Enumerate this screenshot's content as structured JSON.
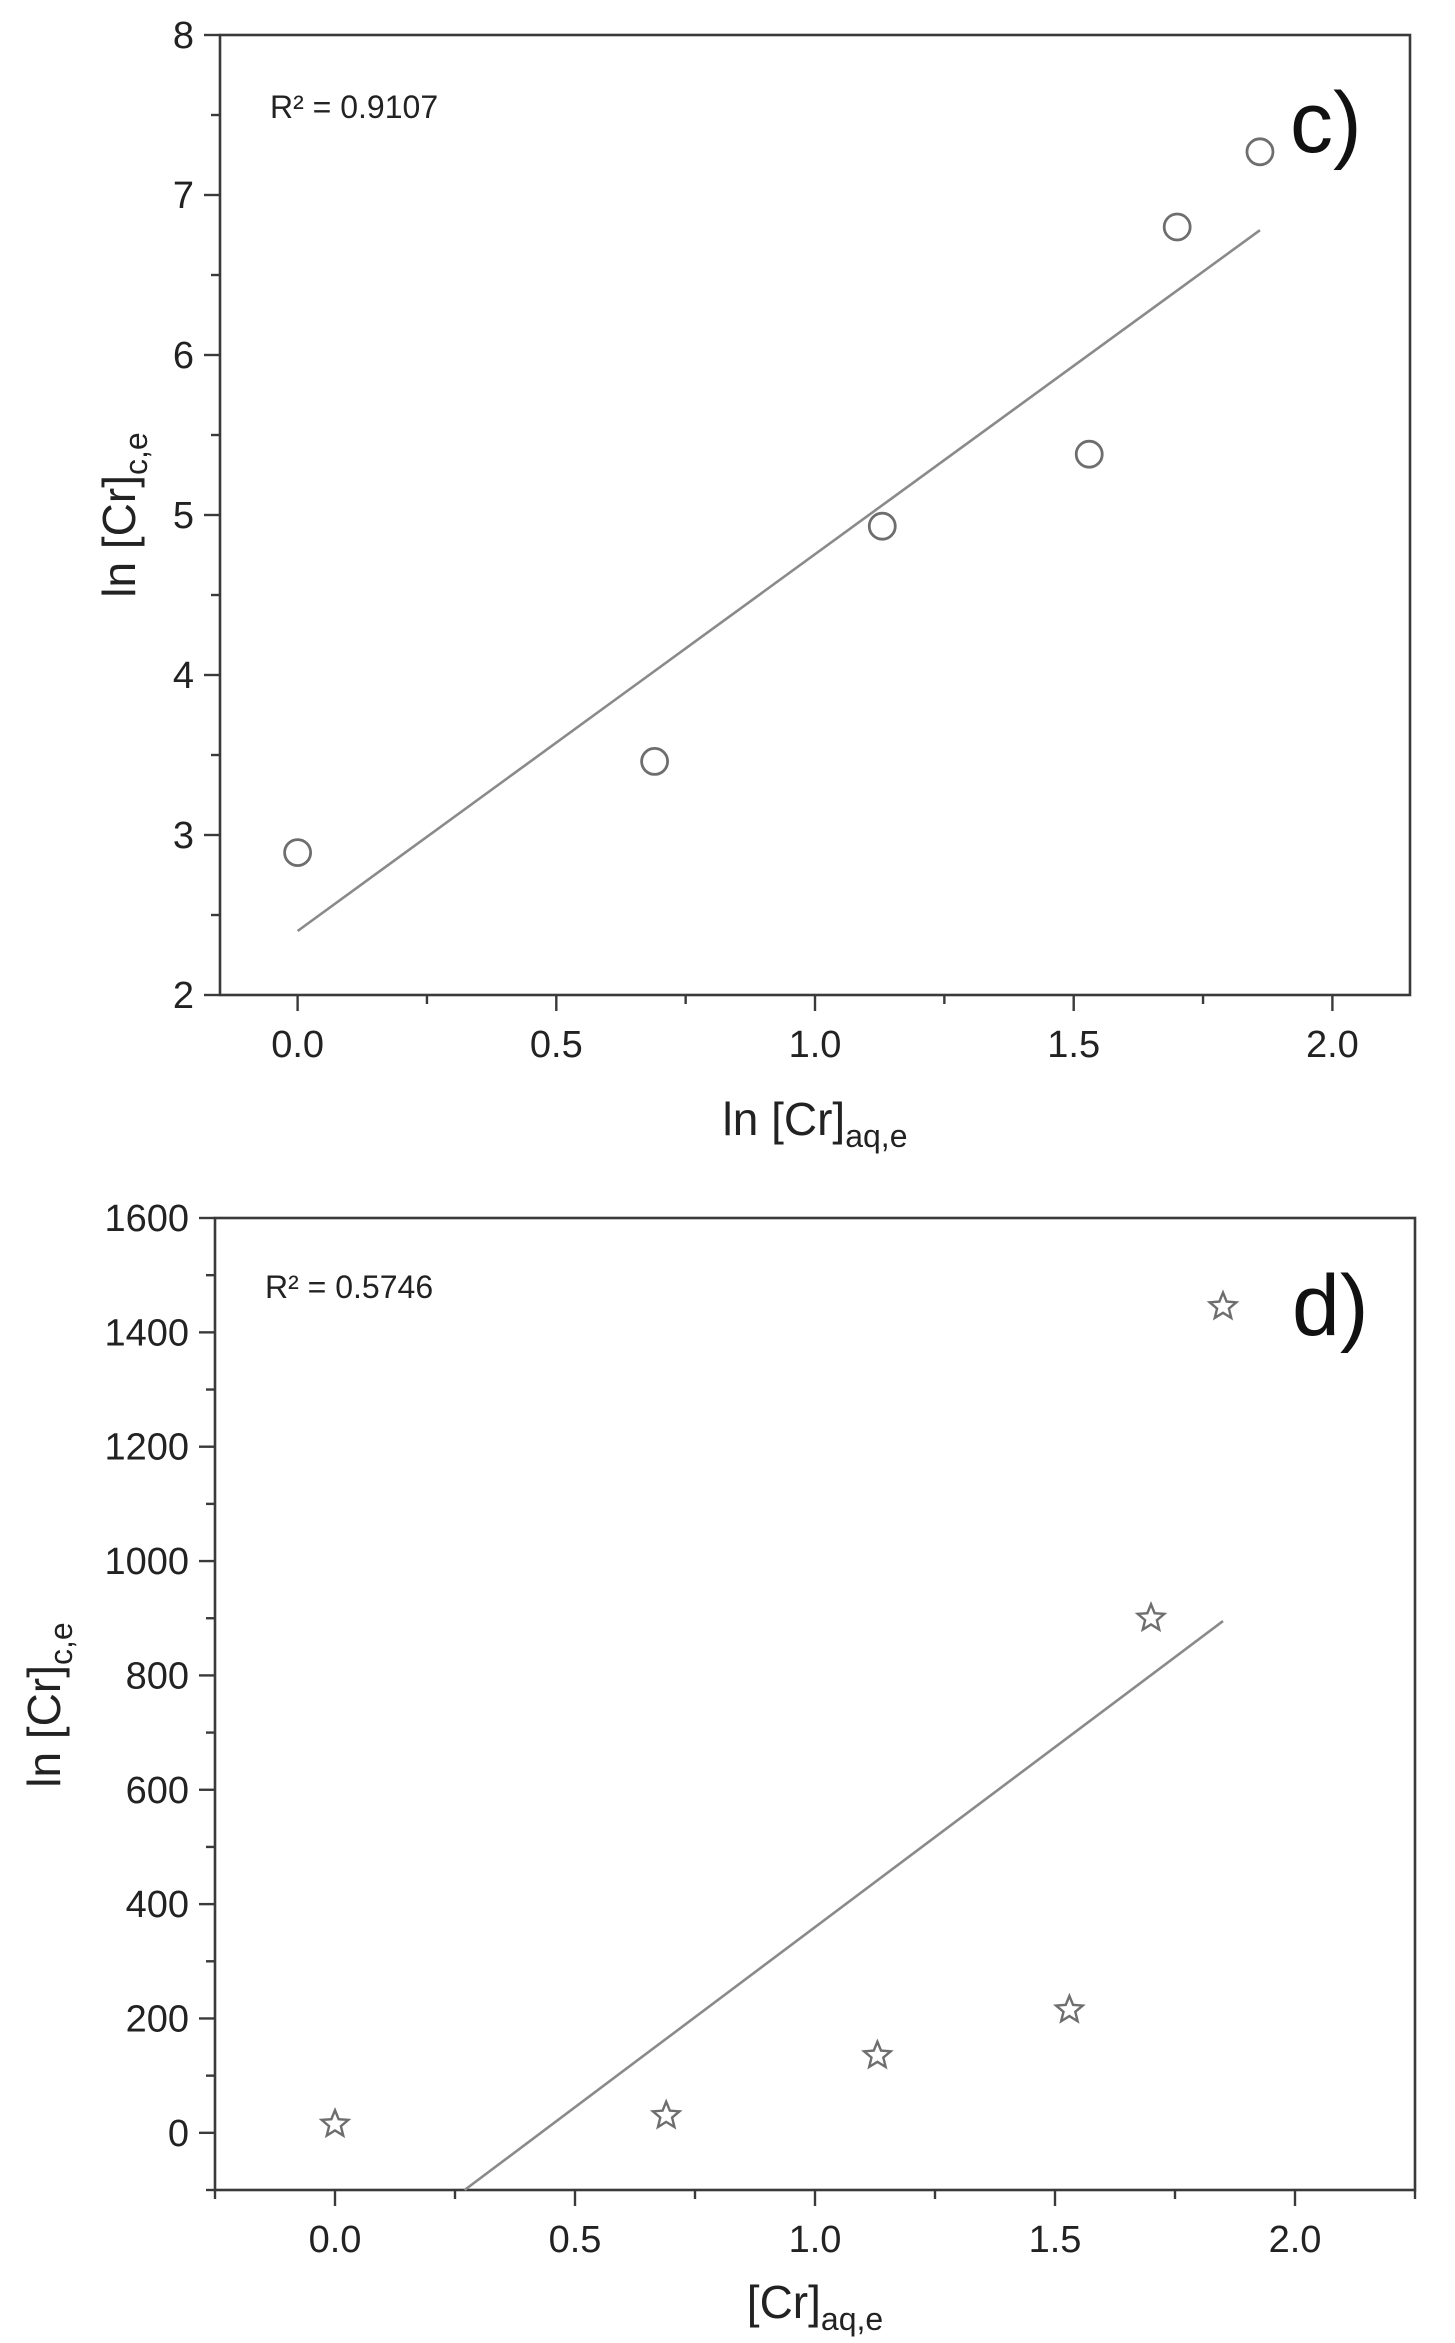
{
  "chart_data": [
    {
      "type": "scatter",
      "panel_label": "c)",
      "annotation": "R² = 0.9107",
      "xlabel": "ln [Cr]aq,e",
      "ylabel": "ln [Cr]c,e",
      "xlim": [
        -0.15,
        2.15
      ],
      "ylim": [
        2,
        8
      ],
      "xticks": [
        0.0,
        0.5,
        1.0,
        1.5,
        2.0
      ],
      "xtick_labels": [
        "0.0",
        "0.5",
        "1.0",
        "1.5",
        "2.0"
      ],
      "yticks": [
        2,
        3,
        4,
        5,
        6,
        7,
        8
      ],
      "ytick_labels": [
        "2",
        "3",
        "4",
        "5",
        "6",
        "7",
        "8"
      ],
      "marker": "open-circle",
      "points": [
        {
          "x": 0.0,
          "y": 2.89
        },
        {
          "x": 0.69,
          "y": 3.46
        },
        {
          "x": 1.13,
          "y": 4.93
        },
        {
          "x": 1.53,
          "y": 5.38
        },
        {
          "x": 1.7,
          "y": 6.8
        },
        {
          "x": 1.86,
          "y": 7.27
        }
      ],
      "fit_line": {
        "x": [
          0.0,
          1.86
        ],
        "y": [
          2.4,
          6.78
        ]
      }
    },
    {
      "type": "scatter",
      "panel_label": "d)",
      "annotation": "R² = 0.5746",
      "xlabel": "[Cr]aq,e",
      "ylabel": "ln [Cr]c,e",
      "xlim": [
        -0.25,
        2.25
      ],
      "ylim": [
        -100,
        1600
      ],
      "xticks": [
        0.0,
        0.5,
        1.0,
        1.5,
        2.0
      ],
      "xtick_labels": [
        "0.0",
        "0.5",
        "1.0",
        "1.5",
        "2.0"
      ],
      "yticks": [
        0,
        200,
        400,
        600,
        800,
        1000,
        1200,
        1400,
        1600
      ],
      "ytick_labels": [
        "0",
        "200",
        "400",
        "600",
        "800",
        "1000",
        "1200",
        "1400",
        "1600"
      ],
      "marker": "open-star",
      "points": [
        {
          "x": 0.0,
          "y": 15
        },
        {
          "x": 0.69,
          "y": 30
        },
        {
          "x": 1.13,
          "y": 135
        },
        {
          "x": 1.53,
          "y": 215
        },
        {
          "x": 1.7,
          "y": 900
        },
        {
          "x": 1.85,
          "y": 1445
        }
      ],
      "fit_line": {
        "x": [
          0.27,
          1.85
        ],
        "y": [
          -100,
          895
        ]
      }
    }
  ]
}
